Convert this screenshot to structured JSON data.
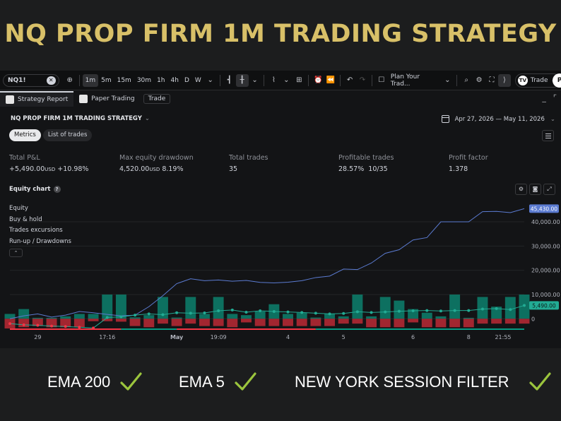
{
  "banner": {
    "title": "NQ PROP FIRM 1M TRADING STRATEGY"
  },
  "toolbar": {
    "symbol": "NQ1!",
    "intervals": [
      "1m",
      "5m",
      "15m",
      "30m",
      "1h",
      "4h",
      "D",
      "W"
    ],
    "active_interval": "1m",
    "plan_label": "Plan Your Trad...",
    "trade_label": "Trade",
    "publish_label": "P"
  },
  "panel_tabs": {
    "strategy_report": "Strategy Report",
    "paper_trading": "Paper Trading",
    "trade": "Trade"
  },
  "report": {
    "strategy_name": "NQ PROP FIRM 1M TRADING STRATEGY",
    "date_range": "Apr 27, 2026 — May 11, 2026",
    "subtabs": [
      "Metrics",
      "List of trades"
    ],
    "metrics": [
      {
        "label": "Total P&L",
        "value": "+5,490.00",
        "unit": "USD",
        "extra": "+10.98%",
        "positive": true
      },
      {
        "label": "Max equity drawdown",
        "value": "4,520.00",
        "unit": "USD",
        "extra": "8.19%",
        "positive": false
      },
      {
        "label": "Total trades",
        "value": "35",
        "unit": "",
        "extra": "",
        "positive": false
      },
      {
        "label": "Profitable trades",
        "value": "28.57%",
        "unit": "",
        "extra": "10/35",
        "positive": false
      },
      {
        "label": "Profit factor",
        "value": "1.378",
        "unit": "",
        "extra": "",
        "positive": false
      }
    ],
    "equity_chart_title": "Equity chart",
    "legend": [
      "Equity",
      "Buy & hold",
      "Trades excursions",
      "Run-up / Drawdowns"
    ]
  },
  "chart_data": {
    "type": "line",
    "x_tick_labels": [
      "29",
      "17:16",
      "May",
      "19:09",
      "4",
      "5",
      "6",
      "8",
      "21:55"
    ],
    "y_tick_labels": [
      "0",
      "10,000.00",
      "20,000.00",
      "30,000.00",
      "40,000.00"
    ],
    "ylim": [
      -4000,
      47000
    ],
    "last_value_labels": {
      "buy_hold": "45,430.00",
      "equity": "5,490.00"
    },
    "series": [
      {
        "name": "Buy & hold",
        "color": "#5b7bd1",
        "values": [
          0,
          1200,
          2000,
          700,
          1500,
          3000,
          2500,
          1800,
          1200,
          1500,
          5000,
          9500,
          14500,
          16500,
          15700,
          16000,
          15500,
          15800,
          15000,
          14800,
          15100,
          15700,
          17000,
          17600,
          20500,
          20300,
          23000,
          27000,
          28500,
          32500,
          33500,
          40000,
          40000,
          40000,
          44200,
          44300,
          43800,
          45430
        ]
      },
      {
        "name": "Equity",
        "color": "#22ab94",
        "values": [
          -2000,
          -2500,
          -2700,
          -3000,
          -3200,
          -3500,
          -3800,
          500,
          800,
          1500,
          2000,
          1700,
          2500,
          2300,
          2400,
          3300,
          3600,
          2700,
          3300,
          3000,
          2800,
          2600,
          2300,
          2000,
          2200,
          2900,
          2600,
          2800,
          3100,
          3300,
          3400,
          3200,
          3400,
          3400,
          4000,
          4200,
          3800,
          5490
        ]
      }
    ],
    "runup": [
      2000,
      4000,
      400,
      400,
      1000,
      2000,
      2000,
      10000,
      10000,
      600,
      1500,
      9000,
      500,
      9000,
      2000,
      9000,
      2000,
      1500,
      3000,
      6000,
      2000,
      2500,
      500,
      2000,
      1000,
      10000,
      1000,
      9000,
      7500,
      4000,
      2500,
      1000,
      10000,
      400,
      9000,
      5000,
      9000,
      10000
    ],
    "drawdown": [
      4000,
      3500,
      3000,
      3500,
      3500,
      3500,
      1000,
      1000,
      1200,
      3000,
      3500,
      2000,
      3000,
      2000,
      3000,
      3000,
      3500,
      1500,
      3000,
      3000,
      3000,
      3000,
      3000,
      3000,
      2000,
      2000,
      3500,
      3500,
      3500,
      1500,
      3500,
      3500,
      3500,
      3500,
      2000,
      2000,
      2000,
      2000
    ],
    "period_bars": [
      {
        "from": 0,
        "to": 8,
        "color": "#f23645"
      },
      {
        "from": 8,
        "to": 12,
        "color": "#089981"
      },
      {
        "from": 12,
        "to": 22,
        "color": "#f23645"
      },
      {
        "from": 22,
        "to": 37,
        "color": "#089981"
      }
    ]
  },
  "features": [
    {
      "label": "EMA 200"
    },
    {
      "label": "EMA 5"
    },
    {
      "label": "NEW YORK SESSION FILTER"
    }
  ],
  "colors": {
    "gold": "#d8c068",
    "check": "#9bc53d",
    "teal": "#22ab94",
    "red": "#f23645"
  }
}
